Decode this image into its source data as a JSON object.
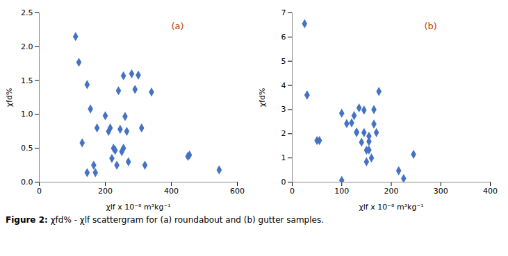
{
  "chart_data": [
    {
      "type": "scatter",
      "x": [
        110,
        120,
        130,
        145,
        145,
        155,
        165,
        170,
        175,
        200,
        210,
        215,
        220,
        225,
        230,
        235,
        240,
        245,
        250,
        255,
        255,
        260,
        265,
        270,
        280,
        290,
        300,
        310,
        320,
        340,
        450,
        455,
        545
      ],
      "values": [
        2.15,
        1.77,
        0.58,
        1.44,
        0.14,
        1.08,
        0.25,
        0.14,
        0.8,
        0.98,
        0.75,
        0.8,
        0.35,
        0.5,
        0.47,
        0.25,
        1.35,
        0.78,
        0.45,
        1.57,
        0.5,
        0.97,
        0.75,
        0.3,
        1.6,
        1.37,
        1.58,
        0.8,
        0.25,
        1.33,
        0.38,
        0.4,
        0.18
      ],
      "xlim": [
        0,
        600
      ],
      "ylim": [
        0,
        2.5
      ],
      "xticks": [
        0,
        200,
        400,
        600
      ],
      "yticks": [
        {
          "value": 0,
          "label": "0.0"
        },
        0.5,
        {
          "value": 1.0,
          "label": "1.0"
        },
        1.5,
        {
          "value": 2.0,
          "label": "2.0"
        },
        2.5
      ],
      "xlabel": "χlf x 10⁻⁸ m³kg⁻¹",
      "ylabel": "χfd%",
      "color": "#4472C4",
      "marker": "diamond",
      "annotations": [
        {
          "text": "(a)",
          "color": "#C04000"
        }
      ]
    },
    {
      "type": "scatter",
      "x": [
        25,
        30,
        30,
        50,
        55,
        100,
        100,
        110,
        120,
        125,
        130,
        130,
        135,
        140,
        145,
        145,
        150,
        150,
        155,
        155,
        155,
        160,
        165,
        165,
        170,
        175,
        215,
        225,
        245
      ],
      "values": [
        6.55,
        3.6,
        3.6,
        1.72,
        1.72,
        0.07,
        2.85,
        2.42,
        2.45,
        2.75,
        2.07,
        2.05,
        3.07,
        1.65,
        2.98,
        2.05,
        0.84,
        1.32,
        1.9,
        1.33,
        1.68,
        1.0,
        2.4,
        3.0,
        2.05,
        3.75,
        0.47,
        0.15,
        1.15
      ],
      "xlim": [
        0,
        400
      ],
      "ylim": [
        0,
        7
      ],
      "xticks": [
        0,
        100,
        200,
        300,
        400
      ],
      "yticks": [
        0,
        1,
        2,
        3,
        4,
        5,
        6,
        7
      ],
      "xlabel": "χlf x 10⁻⁸ m³kg⁻¹",
      "ylabel": "χfd%",
      "color": "#4472C4",
      "marker": "diamond",
      "annotations": [
        {
          "text": "(b)",
          "color": "#C04000"
        }
      ]
    }
  ],
  "caption": [
    "Figure 2:",
    " χfd% - χlf scattergram for (a) roundabout and (b) gutter samples."
  ]
}
